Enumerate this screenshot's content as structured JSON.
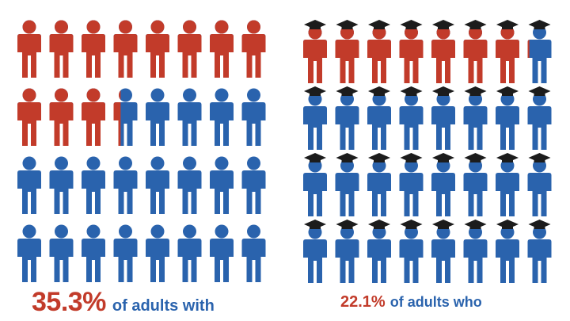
{
  "chart_data": [
    {
      "type": "pictograph",
      "total_icons": 32,
      "highlighted_percent": 35.3,
      "highlighted_color": "#c23b2a",
      "base_color": "#2a63ad",
      "icon": "person-icon",
      "caption": {
        "value": "35.3%",
        "text": "of adults with"
      }
    },
    {
      "type": "pictograph",
      "total_icons": 32,
      "highlighted_percent": 22.1,
      "highlighted_color": "#c23b2a",
      "base_color": "#2a63ad",
      "icon": "graduate-person-icon",
      "cap_color": "#1c1c1c",
      "caption": {
        "value": "22.1%",
        "text": "of adults who"
      }
    }
  ]
}
